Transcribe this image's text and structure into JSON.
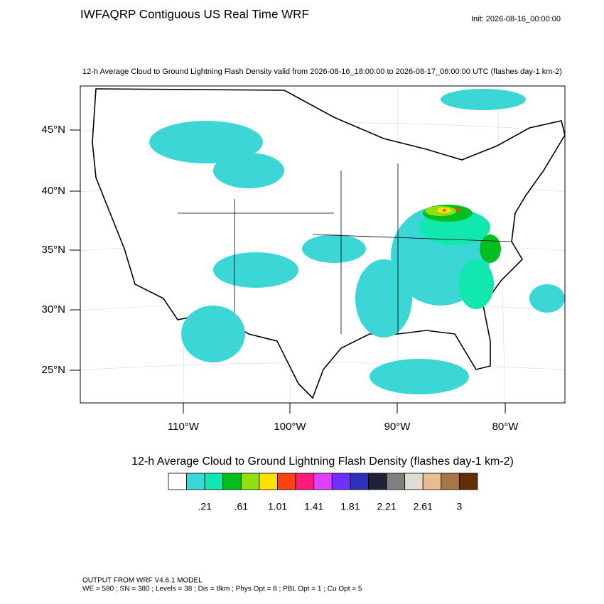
{
  "header": {
    "title": "IWFAQRP Contiguous US Real Time WRF",
    "init": "Init: 2026-08-16_00:00:00"
  },
  "map": {
    "subtitle": "12-h Average Cloud to Ground Lightning Flash Density valid from 2026-08-16_18:00:00 to 2026-08-17_06:00:00 UTC   (flashes day-1 km-2)",
    "lat_labels": [
      "45°N",
      "40°N",
      "35°N",
      "30°N",
      "25°N"
    ],
    "lon_labels": [
      "110°W",
      "100°W",
      "90°W",
      "80°W"
    ]
  },
  "colorbar": {
    "title": "12-h Average Cloud to Ground Lightning Flash Density  (flashes day-1 km-2)",
    "colors": [
      "#ffffff",
      "#3cd6d6",
      "#10e8b0",
      "#00c020",
      "#90e010",
      "#ffe000",
      "#ff4010",
      "#ff1a78",
      "#e040ff",
      "#7030ff",
      "#3030c0",
      "#20203c",
      "#808080",
      "#e0dcd4",
      "#e8bc90",
      "#a87448",
      "#603000"
    ],
    "labels": [
      ".21",
      ".61",
      "1.01",
      "1.41",
      "1.81",
      "2.21",
      "2.61",
      "3"
    ]
  },
  "footer": {
    "lines": [
      "OUTPUT FROM WRF V4.6.1 MODEL",
      "WE = 580 ; SN = 380 ; Levels = 38 ; Dis = 8km ; Phys Opt = 8 ; PBL Opt = 1 ; Cu Opt = 5"
    ]
  }
}
